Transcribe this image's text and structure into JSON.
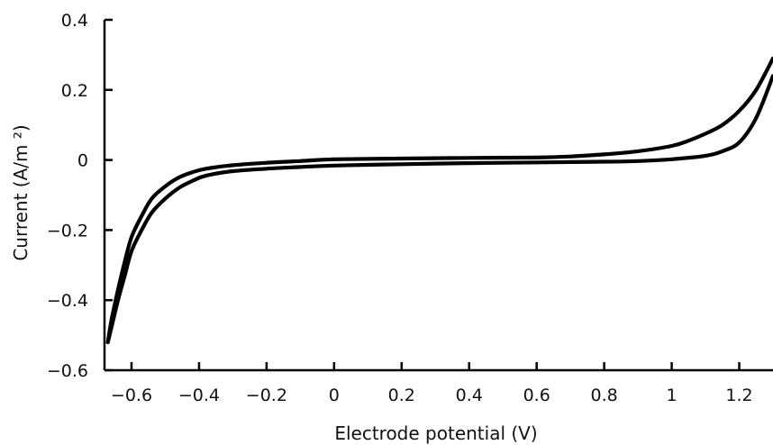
{
  "chart_data": {
    "type": "line",
    "title": "",
    "xlabel": "Electrode potential (V)",
    "ylabel": "Current (A/m ²)",
    "xlim": [
      -0.68,
      1.3
    ],
    "ylim": [
      -0.6,
      0.4
    ],
    "grid": false,
    "legend": "none",
    "x_ticks": [
      -0.6,
      -0.4,
      -0.2,
      0,
      0.2,
      0.4,
      0.6,
      0.8,
      1,
      1.2
    ],
    "x_tick_labels": [
      "−0.6",
      "−0.4",
      "−0.2",
      "0",
      "0.2",
      "0.4",
      "0.6",
      "0.8",
      "1",
      "1.2"
    ],
    "y_ticks": [
      0.4,
      0.2,
      0,
      -0.2,
      -0.4,
      -0.6
    ],
    "y_tick_labels": [
      "0.4",
      "0.2",
      "0",
      "−0.2",
      "−0.4",
      "−0.6"
    ],
    "series": [
      {
        "x": [
          -0.67,
          -0.66,
          -0.64,
          -0.62,
          -0.6,
          -0.57,
          -0.54,
          -0.5,
          -0.46,
          -0.42,
          -0.38,
          -0.3,
          -0.2,
          -0.1,
          0,
          0.2,
          0.4,
          0.6,
          0.7,
          0.8,
          0.9,
          1.0,
          1.05,
          1.1,
          1.15,
          1.2,
          1.25,
          1.3
        ],
        "y": [
          -0.52,
          -0.46,
          -0.37,
          -0.29,
          -0.22,
          -0.16,
          -0.11,
          -0.075,
          -0.05,
          -0.035,
          -0.025,
          -0.015,
          -0.008,
          -0.003,
          0.002,
          0.004,
          0.006,
          0.007,
          0.01,
          0.016,
          0.025,
          0.04,
          0.055,
          0.075,
          0.1,
          0.14,
          0.2,
          0.29
        ]
      },
      {
        "x": [
          -0.67,
          -0.66,
          -0.64,
          -0.62,
          -0.6,
          -0.57,
          -0.54,
          -0.5,
          -0.46,
          -0.42,
          -0.38,
          -0.3,
          -0.2,
          -0.1,
          0,
          0.2,
          0.4,
          0.6,
          0.7,
          0.8,
          0.9,
          1.0,
          1.1,
          1.15,
          1.2,
          1.25,
          1.3
        ],
        "y": [
          -0.52,
          -0.48,
          -0.4,
          -0.33,
          -0.26,
          -0.2,
          -0.15,
          -0.11,
          -0.08,
          -0.06,
          -0.045,
          -0.032,
          -0.025,
          -0.02,
          -0.016,
          -0.012,
          -0.009,
          -0.007,
          -0.006,
          -0.005,
          -0.003,
          0.002,
          0.012,
          0.025,
          0.05,
          0.12,
          0.24
        ]
      }
    ]
  }
}
